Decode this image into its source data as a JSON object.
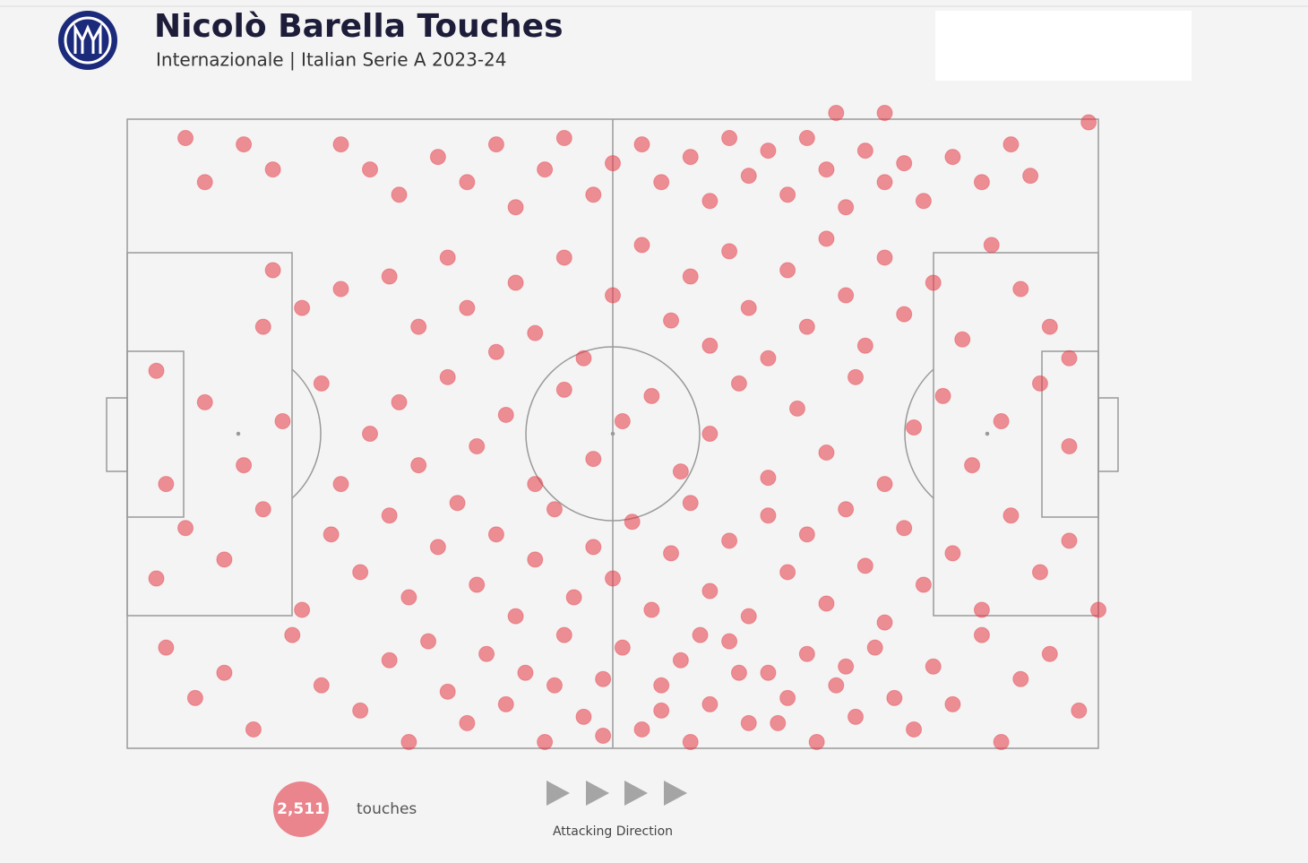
{
  "chart_data": {
    "type": "scatter",
    "title": "Nicolò Barella Touches",
    "subtitle": "Internazionale | Italian Serie A 2023-24",
    "color": "#e63946",
    "xlim": [
      0,
      100
    ],
    "ylim": [
      0,
      100
    ],
    "x": [
      6,
      12,
      8,
      15,
      22,
      25,
      28,
      32,
      35,
      38,
      40,
      43,
      45,
      48,
      50,
      53,
      55,
      58,
      60,
      62,
      64,
      66,
      68,
      70,
      72,
      74,
      76,
      78,
      80,
      82,
      85,
      88,
      91,
      93,
      99,
      73,
      78,
      15,
      14,
      18,
      22,
      27,
      30,
      33,
      35,
      38,
      40,
      42,
      45,
      47,
      50,
      53,
      56,
      58,
      60,
      62,
      64,
      66,
      68,
      70,
      72,
      74,
      76,
      78,
      80,
      83,
      86,
      89,
      92,
      95,
      97,
      3,
      8,
      12,
      16,
      20,
      22,
      25,
      28,
      30,
      33,
      36,
      39,
      42,
      45,
      48,
      51,
      54,
      57,
      60,
      63,
      66,
      69,
      72,
      75,
      78,
      81,
      84,
      87,
      90,
      94,
      97,
      4,
      3,
      6,
      10,
      14,
      18,
      21,
      24,
      27,
      29,
      32,
      34,
      36,
      38,
      40,
      42,
      44,
      46,
      48,
      50,
      52,
      54,
      56,
      58,
      60,
      62,
      64,
      66,
      68,
      70,
      72,
      74,
      76,
      78,
      80,
      82,
      85,
      88,
      91,
      94,
      97,
      100,
      4,
      7,
      10,
      13,
      17,
      20,
      24,
      27,
      29,
      31,
      33,
      35,
      37,
      39,
      41,
      43,
      45,
      47,
      49,
      51,
      53,
      55,
      57,
      58,
      60,
      62,
      64,
      66,
      68,
      70,
      71,
      73,
      75,
      77,
      79,
      81,
      83,
      85,
      88,
      90,
      92,
      95,
      98,
      44,
      55,
      63,
      67,
      49,
      59,
      74
    ],
    "y": [
      3,
      4,
      10,
      8,
      4,
      8,
      12,
      6,
      10,
      4,
      14,
      8,
      3,
      12,
      7,
      4,
      10,
      6,
      13,
      3,
      9,
      5,
      12,
      3,
      8,
      14,
      5,
      10,
      7,
      13,
      6,
      10,
      4,
      9,
      0.5,
      -1,
      -1,
      24,
      33,
      30,
      27,
      25,
      33,
      22,
      30,
      37,
      26,
      34,
      22,
      38,
      28,
      20,
      32,
      25,
      36,
      21,
      30,
      38,
      24,
      33,
      19,
      28,
      36,
      22,
      31,
      26,
      35,
      20,
      27,
      33,
      38,
      40,
      45,
      55,
      48,
      42,
      58,
      50,
      45,
      55,
      41,
      52,
      47,
      58,
      43,
      54,
      48,
      44,
      56,
      50,
      42,
      57,
      46,
      53,
      41,
      58,
      49,
      44,
      55,
      48,
      42,
      52,
      58,
      73,
      65,
      70,
      62,
      78,
      66,
      72,
      63,
      76,
      68,
      61,
      74,
      66,
      79,
      70,
      62,
      76,
      68,
      73,
      64,
      78,
      69,
      61,
      75,
      67,
      79,
      63,
      72,
      66,
      77,
      62,
      71,
      80,
      65,
      74,
      69,
      78,
      63,
      72,
      67,
      78,
      84,
      92,
      88,
      97,
      82,
      90,
      94,
      86,
      99,
      83,
      91,
      96,
      85,
      93,
      88,
      99,
      82,
      95,
      89,
      84,
      97,
      90,
      86,
      99,
      93,
      83,
      96,
      88,
      92,
      85,
      99,
      90,
      95,
      84,
      92,
      97,
      87,
      93,
      82,
      99,
      89,
      85,
      94,
      90,
      94,
      88,
      96,
      98,
      82,
      87
    ],
    "total": {
      "value": 2511,
      "label": "2,511"
    },
    "total_caption": "touches",
    "direction_label": "Attacking Direction"
  }
}
